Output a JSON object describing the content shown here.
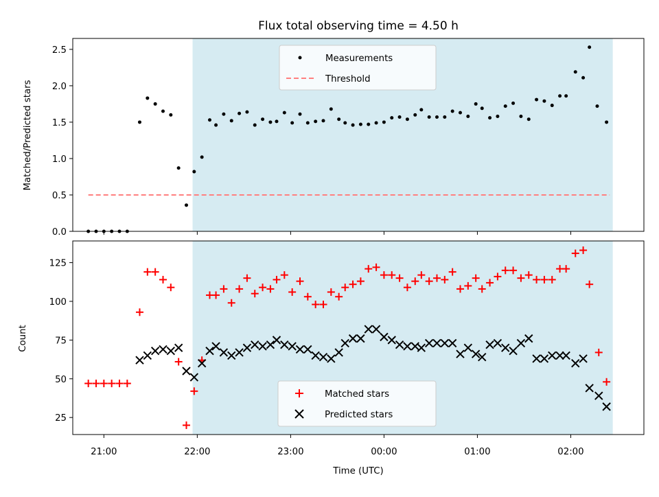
{
  "chart_data": [
    {
      "type": "scatter",
      "title": "Flux total observing time = 4.50 h",
      "ylabel": "Matched/Predicted stars",
      "xlabel": "",
      "x_axis": "time (UTC)",
      "xlim": [
        "20:40",
        "02:47"
      ],
      "ylim": [
        0,
        2.65
      ],
      "yticks": [
        "0.0",
        "0.5",
        "1.0",
        "1.5",
        "2.0",
        "2.5"
      ],
      "highlight_span": {
        "start": "21:57",
        "end": "02:27",
        "color": "#add8e6"
      },
      "legend": {
        "location": "upper center"
      },
      "series": [
        {
          "name": "Measurements",
          "marker": "dot",
          "color": "#000000",
          "points": [
            [
              "20:50",
              0.0
            ],
            [
              "20:55",
              0.0
            ],
            [
              "21:00",
              0.0
            ],
            [
              "21:05",
              0.0
            ],
            [
              "21:10",
              0.0
            ],
            [
              "21:15",
              0.0
            ],
            [
              "21:23",
              1.5
            ],
            [
              "21:28",
              1.83
            ],
            [
              "21:33",
              1.75
            ],
            [
              "21:38",
              1.65
            ],
            [
              "21:43",
              1.6
            ],
            [
              "21:48",
              0.87
            ],
            [
              "21:53",
              0.36
            ],
            [
              "21:58",
              0.82
            ],
            [
              "22:03",
              1.02
            ],
            [
              "22:08",
              1.53
            ],
            [
              "22:12",
              1.46
            ],
            [
              "22:17",
              1.61
            ],
            [
              "22:22",
              1.52
            ],
            [
              "22:27",
              1.62
            ],
            [
              "22:32",
              1.64
            ],
            [
              "22:37",
              1.46
            ],
            [
              "22:42",
              1.54
            ],
            [
              "22:47",
              1.5
            ],
            [
              "22:51",
              1.51
            ],
            [
              "22:56",
              1.63
            ],
            [
              "23:01",
              1.49
            ],
            [
              "23:06",
              1.61
            ],
            [
              "23:11",
              1.49
            ],
            [
              "23:16",
              1.51
            ],
            [
              "23:21",
              1.52
            ],
            [
              "23:26",
              1.68
            ],
            [
              "23:31",
              1.54
            ],
            [
              "23:35",
              1.49
            ],
            [
              "23:40",
              1.46
            ],
            [
              "23:45",
              1.47
            ],
            [
              "23:50",
              1.47
            ],
            [
              "23:55",
              1.49
            ],
            [
              "00:00",
              1.5
            ],
            [
              "00:05",
              1.56
            ],
            [
              "00:10",
              1.57
            ],
            [
              "00:15",
              1.54
            ],
            [
              "00:20",
              1.6
            ],
            [
              "00:24",
              1.67
            ],
            [
              "00:29",
              1.57
            ],
            [
              "00:34",
              1.57
            ],
            [
              "00:39",
              1.57
            ],
            [
              "00:44",
              1.65
            ],
            [
              "00:49",
              1.63
            ],
            [
              "00:54",
              1.58
            ],
            [
              "00:59",
              1.75
            ],
            [
              "01:03",
              1.69
            ],
            [
              "01:08",
              1.56
            ],
            [
              "01:13",
              1.58
            ],
            [
              "01:18",
              1.72
            ],
            [
              "01:23",
              1.76
            ],
            [
              "01:28",
              1.58
            ],
            [
              "01:33",
              1.54
            ],
            [
              "01:38",
              1.81
            ],
            [
              "01:43",
              1.79
            ],
            [
              "01:48",
              1.73
            ],
            [
              "01:53",
              1.86
            ],
            [
              "01:57",
              1.86
            ],
            [
              "02:03",
              2.19
            ],
            [
              "02:08",
              2.11
            ],
            [
              "02:12",
              2.53
            ],
            [
              "02:17",
              1.72
            ],
            [
              "02:23",
              1.5
            ]
          ]
        },
        {
          "name": "Threshold",
          "marker": "dashed-line",
          "color": "#ff7f7f",
          "points": [
            [
              "20:50",
              0.5
            ],
            [
              "02:25",
              0.5
            ]
          ]
        }
      ]
    },
    {
      "type": "scatter",
      "title": "",
      "xlabel": "Time (UTC)",
      "ylabel": "Count",
      "xlim": [
        "20:40",
        "02:47"
      ],
      "ylim": [
        14,
        139
      ],
      "xticks": [
        "21:00",
        "22:00",
        "23:00",
        "00:00",
        "01:00",
        "02:00"
      ],
      "yticks": [
        "25",
        "50",
        "75",
        "100",
        "125"
      ],
      "highlight_span": {
        "start": "21:57",
        "end": "02:27",
        "color": "#add8e6"
      },
      "legend": {
        "location": "lower center"
      },
      "series": [
        {
          "name": "Matched stars",
          "marker": "plus",
          "color": "#ff0000",
          "points": [
            [
              "20:50",
              47
            ],
            [
              "20:55",
              47
            ],
            [
              "21:00",
              47
            ],
            [
              "21:05",
              47
            ],
            [
              "21:10",
              47
            ],
            [
              "21:15",
              47
            ],
            [
              "21:23",
              93
            ],
            [
              "21:28",
              119
            ],
            [
              "21:33",
              119
            ],
            [
              "21:38",
              114
            ],
            [
              "21:43",
              109
            ],
            [
              "21:48",
              61
            ],
            [
              "21:53",
              20
            ],
            [
              "21:58",
              42
            ],
            [
              "22:03",
              62
            ],
            [
              "22:08",
              104
            ],
            [
              "22:12",
              104
            ],
            [
              "22:17",
              108
            ],
            [
              "22:22",
              99
            ],
            [
              "22:27",
              108
            ],
            [
              "22:32",
              115
            ],
            [
              "22:37",
              105
            ],
            [
              "22:42",
              109
            ],
            [
              "22:47",
              108
            ],
            [
              "22:51",
              114
            ],
            [
              "22:56",
              117
            ],
            [
              "23:01",
              106
            ],
            [
              "23:06",
              113
            ],
            [
              "23:11",
              103
            ],
            [
              "23:16",
              98
            ],
            [
              "23:21",
              98
            ],
            [
              "23:26",
              106
            ],
            [
              "23:31",
              103
            ],
            [
              "23:35",
              109
            ],
            [
              "23:40",
              111
            ],
            [
              "23:45",
              113
            ],
            [
              "23:50",
              121
            ],
            [
              "23:55",
              122
            ],
            [
              "00:00",
              117
            ],
            [
              "00:05",
              117
            ],
            [
              "00:10",
              115
            ],
            [
              "00:15",
              109
            ],
            [
              "00:20",
              113
            ],
            [
              "00:24",
              117
            ],
            [
              "00:29",
              113
            ],
            [
              "00:34",
              115
            ],
            [
              "00:39",
              114
            ],
            [
              "00:44",
              119
            ],
            [
              "00:49",
              108
            ],
            [
              "00:54",
              110
            ],
            [
              "00:59",
              115
            ],
            [
              "01:03",
              108
            ],
            [
              "01:08",
              112
            ],
            [
              "01:13",
              116
            ],
            [
              "01:18",
              120
            ],
            [
              "01:23",
              120
            ],
            [
              "01:28",
              115
            ],
            [
              "01:33",
              117
            ],
            [
              "01:38",
              114
            ],
            [
              "01:43",
              114
            ],
            [
              "01:48",
              114
            ],
            [
              "01:53",
              121
            ],
            [
              "01:57",
              121
            ],
            [
              "02:03",
              131
            ],
            [
              "02:08",
              133
            ],
            [
              "02:12",
              111
            ],
            [
              "02:18",
              67
            ],
            [
              "02:23",
              48
            ]
          ]
        },
        {
          "name": "Predicted stars",
          "marker": "x",
          "color": "#000000",
          "points": [
            [
              "21:23",
              62
            ],
            [
              "21:28",
              65
            ],
            [
              "21:33",
              68
            ],
            [
              "21:38",
              69
            ],
            [
              "21:43",
              68
            ],
            [
              "21:48",
              70
            ],
            [
              "21:53",
              55
            ],
            [
              "21:58",
              51
            ],
            [
              "22:03",
              60
            ],
            [
              "22:08",
              68
            ],
            [
              "22:12",
              71
            ],
            [
              "22:17",
              67
            ],
            [
              "22:22",
              65
            ],
            [
              "22:27",
              67
            ],
            [
              "22:32",
              70
            ],
            [
              "22:37",
              72
            ],
            [
              "22:42",
              71
            ],
            [
              "22:47",
              72
            ],
            [
              "22:51",
              75
            ],
            [
              "22:56",
              72
            ],
            [
              "23:01",
              71
            ],
            [
              "23:06",
              69
            ],
            [
              "23:11",
              69
            ],
            [
              "23:16",
              65
            ],
            [
              "23:21",
              64
            ],
            [
              "23:26",
              63
            ],
            [
              "23:31",
              67
            ],
            [
              "23:35",
              73
            ],
            [
              "23:40",
              76
            ],
            [
              "23:45",
              76
            ],
            [
              "23:50",
              82
            ],
            [
              "23:55",
              82
            ],
            [
              "00:00",
              77
            ],
            [
              "00:05",
              75
            ],
            [
              "00:10",
              72
            ],
            [
              "00:15",
              71
            ],
            [
              "00:20",
              71
            ],
            [
              "00:24",
              70
            ],
            [
              "00:29",
              73
            ],
            [
              "00:34",
              73
            ],
            [
              "00:39",
              73
            ],
            [
              "00:44",
              73
            ],
            [
              "00:49",
              66
            ],
            [
              "00:54",
              70
            ],
            [
              "00:59",
              66
            ],
            [
              "01:03",
              64
            ],
            [
              "01:08",
              72
            ],
            [
              "01:13",
              73
            ],
            [
              "01:18",
              70
            ],
            [
              "01:23",
              68
            ],
            [
              "01:28",
              73
            ],
            [
              "01:33",
              76
            ],
            [
              "01:38",
              63
            ],
            [
              "01:43",
              63
            ],
            [
              "01:48",
              65
            ],
            [
              "01:53",
              65
            ],
            [
              "01:57",
              65
            ],
            [
              "02:03",
              60
            ],
            [
              "02:08",
              63
            ],
            [
              "02:12",
              44
            ],
            [
              "02:18",
              39
            ],
            [
              "02:23",
              32
            ]
          ]
        }
      ]
    }
  ]
}
